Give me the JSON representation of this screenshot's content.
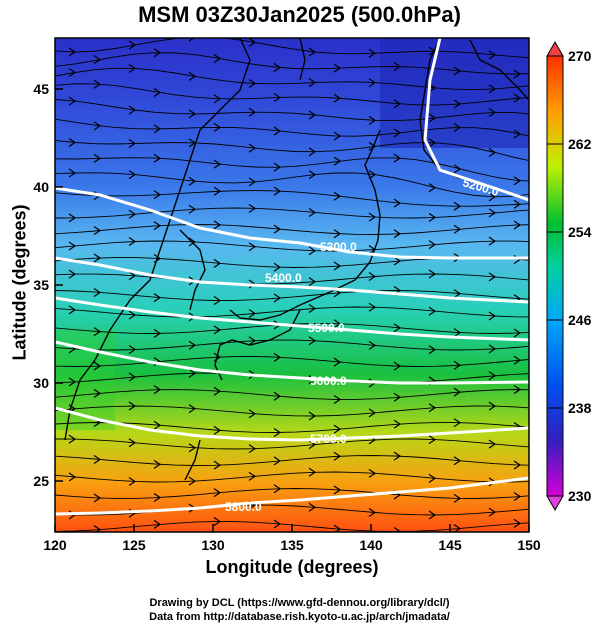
{
  "title": "MSM 03Z30Jan2025 (500.0hPa)",
  "map": {
    "xlabel": "Longitude (degrees)",
    "ylabel": "Latitude  (degrees)",
    "lon_range": [
      120,
      150
    ],
    "lat_range": [
      22.4,
      47.6
    ],
    "lon_ticks": [
      "120",
      "125",
      "130",
      "135",
      "140",
      "145",
      "150"
    ],
    "lat_ticks": [
      "25",
      "30",
      "35",
      "40",
      "45"
    ],
    "shading": "temperature (K)",
    "vectors": "wind streamlines",
    "contours": [
      {
        "label": "5200.0"
      },
      {
        "label": "5300.0"
      },
      {
        "label": "5400.0"
      },
      {
        "label": "5500.0"
      },
      {
        "label": "5600.0"
      },
      {
        "label": "5700.0"
      },
      {
        "label": "5800.0"
      }
    ],
    "colors": {
      "contour": "#ffffff",
      "coast": "#000000",
      "streamline": "#000000"
    }
  },
  "colorbar": {
    "min": 230,
    "max": 270,
    "tick_labels": [
      "270",
      "262",
      "254",
      "246",
      "238",
      "230"
    ],
    "colors": [
      "#d400d4",
      "#2020cc",
      "#0060ff",
      "#00c8f0",
      "#00c040",
      "#c8f000",
      "#ffa000",
      "#ff3000"
    ]
  },
  "credits": {
    "line1": "Drawing by DCL (https://www.gfd-dennou.org/library/dcl/)",
    "line2": "Data from http://database.rish.kyoto-u.ac.jp/arch/jmadata/"
  }
}
